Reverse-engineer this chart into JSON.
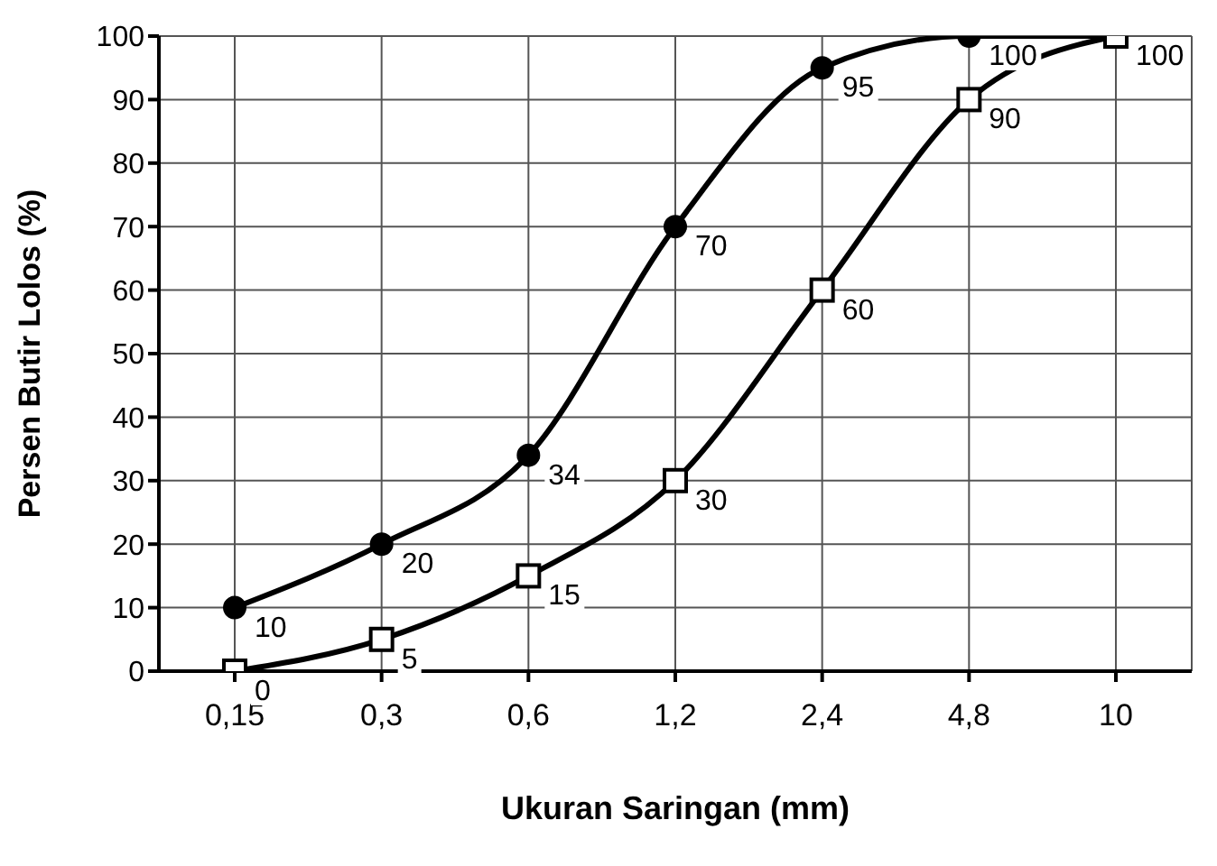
{
  "chart_data": {
    "type": "line",
    "xlabel": "Ukuran Saringan (mm)",
    "ylabel": "Persen Butir Lolos (%)",
    "categories": [
      "0,15",
      "0,3",
      "0,6",
      "1,2",
      "2,4",
      "4,8",
      "10"
    ],
    "series": [
      {
        "color": "#000000",
        "marker": "circle",
        "values": [
          10,
          20,
          34,
          70,
          95,
          100,
          100
        ],
        "value_labels": [
          "10",
          "20",
          "34",
          "70",
          "95",
          "100",
          null
        ]
      },
      {
        "color": "#000000",
        "marker": "square",
        "values": [
          0,
          5,
          15,
          30,
          60,
          90,
          100
        ],
        "value_labels": [
          "0",
          "5",
          "15",
          "30",
          "60",
          "90",
          "100"
        ]
      }
    ],
    "ylim": [
      0,
      100
    ],
    "yticks": [
      0,
      10,
      20,
      30,
      40,
      50,
      60,
      70,
      80,
      90,
      100
    ],
    "grid": true,
    "line_style": "solid"
  }
}
